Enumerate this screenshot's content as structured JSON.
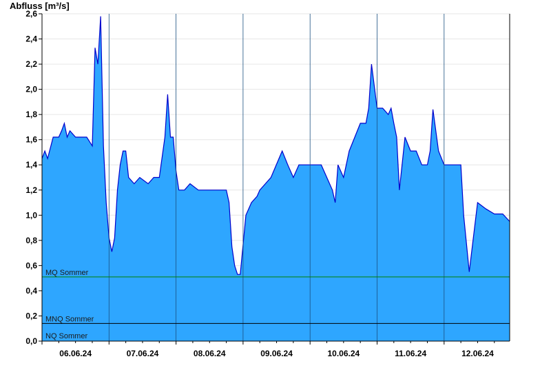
{
  "chart_data": {
    "type": "area",
    "ylabel": "Abfluss [m³/s]",
    "ylim": [
      0,
      2.6
    ],
    "yticks": [
      "0,0",
      "0,2",
      "0,4",
      "0,6",
      "0,8",
      "1,0",
      "1,2",
      "1,4",
      "1,6",
      "1,8",
      "2,0",
      "2,2",
      "2,4",
      "2,6"
    ],
    "xticks": [
      "06.06.24",
      "07.06.24",
      "08.06.24",
      "09.06.24",
      "10.06.24",
      "11.06.24",
      "12.06.24"
    ],
    "x_range_days": [
      0,
      7
    ],
    "grid": true,
    "colors": {
      "fill": "#2ea6ff",
      "line": "#0000cc",
      "mq": "#008000",
      "mnq": "#000000",
      "axis": "#000000"
    },
    "reference_lines": [
      {
        "label": "MQ Sommer",
        "value": 0.51
      },
      {
        "label": "MNQ Sommer",
        "value": 0.14
      },
      {
        "label": "NQ Sommer",
        "value": 0.0
      }
    ],
    "series": [
      {
        "x": [
          "05.06.24 18:00",
          "05.06.24 19:00",
          "05.06.24 20:00",
          "05.06.24 22:00",
          "06.06.24 00:00",
          "06.06.24 01:00",
          "06.06.24 02:00",
          "06.06.24 03:00",
          "06.06.24 04:00",
          "06.06.24 06:00",
          "06.06.24 08:00",
          "06.06.24 10:00",
          "06.06.24 12:00",
          "06.06.24 13:00",
          "06.06.24 14:00",
          "06.06.24 15:00",
          "06.06.24 16:00",
          "06.06.24 17:00",
          "06.06.24 18:00",
          "06.06.24 19:00",
          "06.06.24 20:00",
          "06.06.24 21:00",
          "06.06.24 22:00",
          "06.06.24 23:00",
          "07.06.24 00:00",
          "07.06.24 01:00",
          "07.06.24 03:00",
          "07.06.24 05:00",
          "07.06.24 08:00",
          "07.06.24 10:00",
          "07.06.24 12:00",
          "07.06.24 14:00",
          "07.06.24 15:00",
          "07.06.24 16:00",
          "07.06.24 17:00",
          "07.06.24 18:00",
          "07.06.24 19:00",
          "07.06.24 21:00",
          "07.06.24 23:00",
          "08.06.24 02:00",
          "08.06.24 06:00",
          "08.06.24 09:00",
          "08.06.24 11:00",
          "08.06.24 12:00",
          "08.06.24 13:00",
          "08.06.24 14:00",
          "08.06.24 15:00",
          "08.06.24 16:00",
          "08.06.24 17:00",
          "08.06.24 19:00",
          "08.06.24 21:00",
          "08.06.24 23:00",
          "09.06.24 00:00",
          "09.06.24 04:00",
          "09.06.24 08:00",
          "09.06.24 10:00",
          "09.06.24 12:00",
          "09.06.24 14:00",
          "09.06.24 16:00",
          "09.06.24 18:00",
          "09.06.24 20:00",
          "09.06.24 22:00",
          "10.06.24 00:00",
          "10.06.24 02:00",
          "10.06.24 03:00",
          "10.06.24 04:00",
          "10.06.24 06:00",
          "10.06.24 08:00",
          "10.06.24 10:00",
          "10.06.24 12:00",
          "10.06.24 13:00",
          "10.06.24 14:00",
          "10.06.24 15:00",
          "10.06.24 16:00",
          "10.06.24 18:00",
          "10.06.24 20:00",
          "10.06.24 22:00",
          "10.06.24 23:00",
          "11.06.24 00:00",
          "11.06.24 01:00",
          "11.06.24 02:00",
          "11.06.24 04:00",
          "11.06.24 06:00",
          "11.06.24 08:00",
          "11.06.24 10:00",
          "11.06.24 11:00",
          "11.06.24 12:00",
          "11.06.24 13:00",
          "11.06.24 14:00",
          "11.06.24 16:00",
          "11.06.24 18:00",
          "11.06.24 20:00",
          "11.06.24 22:00",
          "11.06.24 23:00",
          "12.06.24 00:00",
          "12.06.24 01:00",
          "12.06.24 03:00",
          "12.06.24 06:00",
          "12.06.24 09:00",
          "12.06.24 12:00",
          "12.06.24 15:00",
          "12.06.24 18:00"
        ],
        "values": [
          1.45,
          1.51,
          1.45,
          1.62,
          1.62,
          1.67,
          1.73,
          1.62,
          1.67,
          1.62,
          1.62,
          1.62,
          1.55,
          2.33,
          2.2,
          2.58,
          1.55,
          1.1,
          0.82,
          0.71,
          0.82,
          1.2,
          1.4,
          1.51,
          1.51,
          1.3,
          1.25,
          1.3,
          1.25,
          1.3,
          1.3,
          1.62,
          1.96,
          1.62,
          1.62,
          1.35,
          1.2,
          1.2,
          1.25,
          1.2,
          1.2,
          1.2,
          1.2,
          1.2,
          1.1,
          0.75,
          0.6,
          0.53,
          0.53,
          1.0,
          1.1,
          1.15,
          1.2,
          1.3,
          1.51,
          1.4,
          1.3,
          1.4,
          1.4,
          1.4,
          1.4,
          1.4,
          1.3,
          1.2,
          1.1,
          1.4,
          1.3,
          1.51,
          1.62,
          1.73,
          1.73,
          1.73,
          1.85,
          2.2,
          1.85,
          1.85,
          1.8,
          1.85,
          1.73,
          1.62,
          1.2,
          1.62,
          1.51,
          1.51,
          1.4,
          1.4,
          1.4,
          1.51,
          1.84,
          1.51,
          1.4,
          1.4,
          1.4,
          1.4,
          1.4,
          1.0,
          0.55,
          1.1,
          1.05,
          1.01,
          1.01,
          0.95
        ]
      }
    ]
  }
}
